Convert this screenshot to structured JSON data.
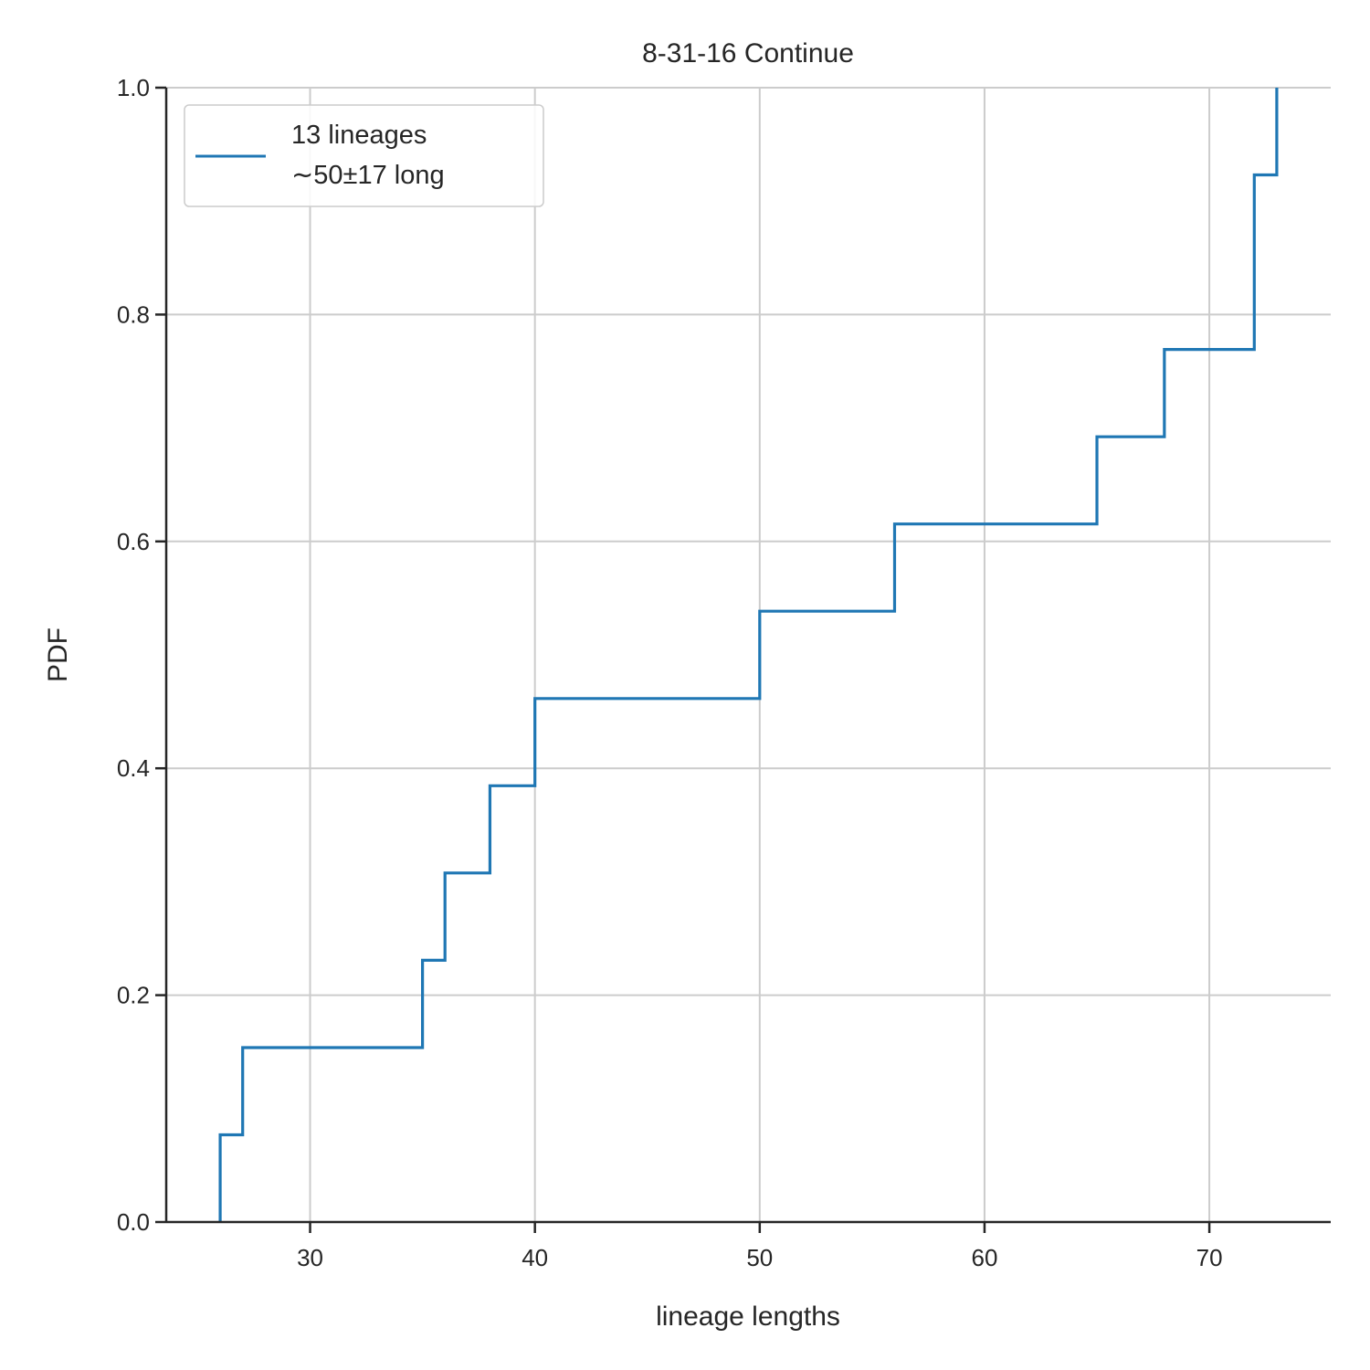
{
  "chart_data": {
    "type": "line",
    "step": "post",
    "title": "8-31-16 Continue",
    "xlabel": "lineage lengths",
    "ylabel": "PDF",
    "xlim": [
      23.6,
      75.4
    ],
    "ylim": [
      0,
      1.0
    ],
    "xticks": [
      30,
      40,
      50,
      60,
      70
    ],
    "yticks": [
      0.0,
      0.2,
      0.4,
      0.6,
      0.8,
      1.0
    ],
    "xtick_labels": [
      "30",
      "40",
      "50",
      "60",
      "70"
    ],
    "ytick_labels": [
      "0.0",
      "0.2",
      "0.4",
      "0.6",
      "0.8",
      "1.0"
    ],
    "grid": true,
    "legend_position": "top-left",
    "legend": {
      "line1": "13 lineages",
      "line2": "∼50±17 long"
    },
    "series": [
      {
        "color": "#1f77b4",
        "x": [
          26,
          27,
          35,
          36,
          38,
          40,
          50,
          56,
          65,
          68,
          72,
          73
        ],
        "y": [
          0.0769,
          0.1538,
          0.2308,
          0.3077,
          0.3846,
          0.4615,
          0.5385,
          0.6154,
          0.6923,
          0.7692,
          0.9231,
          1.0
        ]
      }
    ]
  }
}
